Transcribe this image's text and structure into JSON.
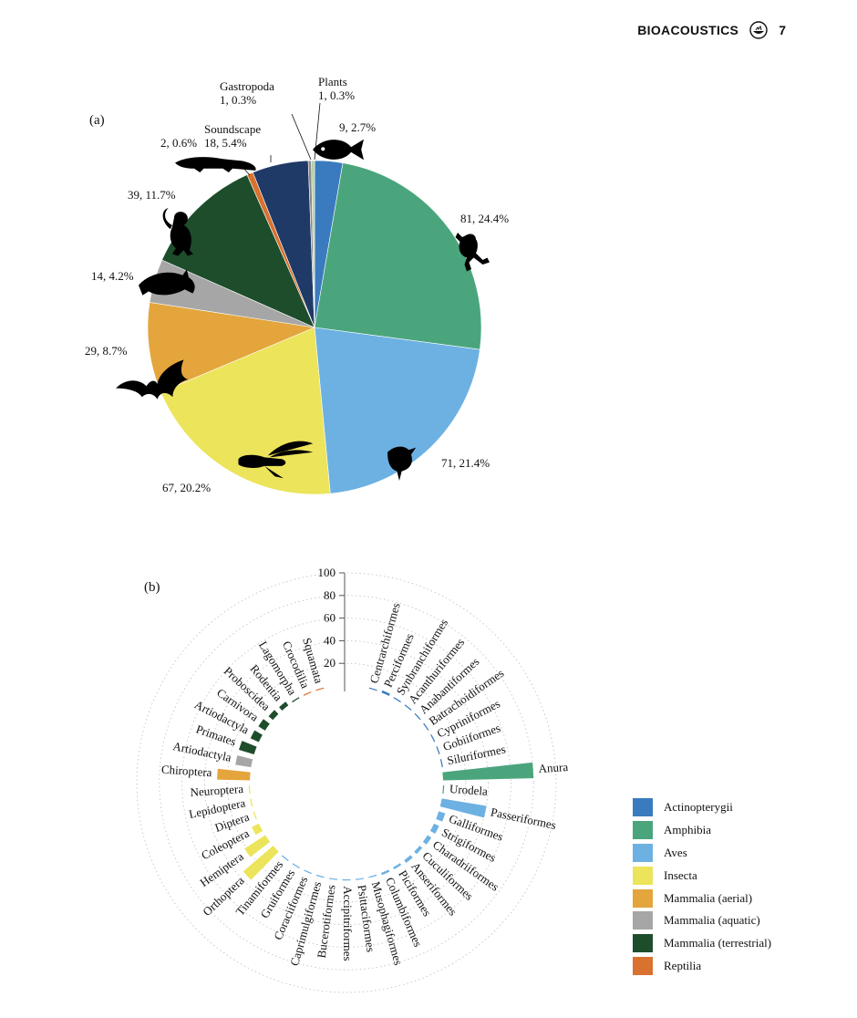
{
  "header": {
    "journal": "BIOACOUSTICS",
    "page": "7"
  },
  "panels": {
    "a": "(a)",
    "b": "(b)"
  },
  "colors": {
    "Actinopterygii": "#3a7bbf",
    "Amphibia": "#4aa57d",
    "Aves": "#6db1e3",
    "Insecta": "#ece45a",
    "Mammalia (aerial)": "#e3a53c",
    "Mammalia (aquatic)": "#a6a6a6",
    "Mammalia (terrestrial)": "#1e4d2b",
    "Reptilia": "#d9712f",
    "Soundscape": "#1f3a66",
    "Gastropoda": "#8a8a8a",
    "Plants": "#b8cfa2"
  },
  "chart_data": [
    {
      "type": "pie",
      "slices": [
        {
          "category": "Actinopterygii",
          "value": 9,
          "label": "9, 2.7%",
          "icon": "fish-icon"
        },
        {
          "category": "Amphibia",
          "value": 81,
          "label": "81, 24.4%",
          "icon": "frog-icon"
        },
        {
          "category": "Aves",
          "value": 71,
          "label": "71, 21.4%",
          "icon": "bird-icon"
        },
        {
          "category": "Insecta",
          "value": 67,
          "label": "67, 20.2%",
          "icon": "cricket-icon"
        },
        {
          "category": "Mammalia (aerial)",
          "value": 29,
          "label": "29, 8.7%",
          "icon": "bat-icon"
        },
        {
          "category": "Mammalia (aquatic)",
          "value": 14,
          "label": "14, 4.2%",
          "icon": "dolphin-icon"
        },
        {
          "category": "Mammalia (terrestrial)",
          "value": 39,
          "label": "39, 11.7%",
          "icon": "monkey-icon"
        },
        {
          "category": "Reptilia",
          "value": 2,
          "label": "2, 0.6%",
          "icon": "crocodile-icon"
        },
        {
          "category": "Soundscape",
          "value": 18,
          "label": "Soundscape\n18, 5.4%"
        },
        {
          "category": "Gastropoda",
          "value": 1,
          "label": "Gastropoda\n1, 0.3%"
        },
        {
          "category": "Plants",
          "value": 1,
          "label": "Plants\n1, 0.3%"
        }
      ]
    },
    {
      "type": "bar",
      "layout": "circular",
      "radial_axis": {
        "ticks": [
          "20",
          "40",
          "60",
          "80",
          "100"
        ],
        "range": [
          0,
          100
        ],
        "grid": true
      },
      "bars": [
        {
          "label": "Centrarchiformes",
          "group": "Actinopterygii",
          "value": 1
        },
        {
          "label": "Perciformes",
          "group": "Actinopterygii",
          "value": 2
        },
        {
          "label": "Synbranchiformes",
          "group": "Actinopterygii",
          "value": 1
        },
        {
          "label": "Acanthuriformes",
          "group": "Actinopterygii",
          "value": 1
        },
        {
          "label": "Anabantiformes",
          "group": "Actinopterygii",
          "value": 1
        },
        {
          "label": "Batrachoidiformes",
          "group": "Actinopterygii",
          "value": 1
        },
        {
          "label": "Cypriniformes",
          "group": "Actinopterygii",
          "value": 1
        },
        {
          "label": "Gobiiformes",
          "group": "Actinopterygii",
          "value": 1
        },
        {
          "label": "Siluriformes",
          "group": "Actinopterygii",
          "value": 1
        },
        {
          "label": "Anura",
          "group": "Amphibia",
          "value": 80
        },
        {
          "label": "Urodela",
          "group": "Amphibia",
          "value": 1
        },
        {
          "label": "Passeriformes",
          "group": "Aves",
          "value": 40
        },
        {
          "label": "Galliformes",
          "group": "Aves",
          "value": 6
        },
        {
          "label": "Strigiformes",
          "group": "Aves",
          "value": 5
        },
        {
          "label": "Charadriiformes",
          "group": "Aves",
          "value": 4
        },
        {
          "label": "Cuculiformes",
          "group": "Aves",
          "value": 3
        },
        {
          "label": "Anseriformes",
          "group": "Aves",
          "value": 3
        },
        {
          "label": "Piciformes",
          "group": "Aves",
          "value": 2
        },
        {
          "label": "Columbiformes",
          "group": "Aves",
          "value": 2
        },
        {
          "label": "Musophagiformes",
          "group": "Aves",
          "value": 1
        },
        {
          "label": "Psittaciformes",
          "group": "Aves",
          "value": 1
        },
        {
          "label": "Accipitriformes",
          "group": "Aves",
          "value": 1
        },
        {
          "label": "Bucerotiformes",
          "group": "Aves",
          "value": 1
        },
        {
          "label": "Caprimulgiformes",
          "group": "Aves",
          "value": 1
        },
        {
          "label": "Coraciiformes",
          "group": "Aves",
          "value": 1
        },
        {
          "label": "Gruiformes",
          "group": "Aves",
          "value": 1
        },
        {
          "label": "Tinamiformes",
          "group": "Aves",
          "value": 1
        },
        {
          "label": "Orthoptera",
          "group": "Insecta",
          "value": 35
        },
        {
          "label": "Hemiptera",
          "group": "Insecta",
          "value": 22
        },
        {
          "label": "Coleoptera",
          "group": "Insecta",
          "value": 7
        },
        {
          "label": "Diptera",
          "group": "Insecta",
          "value": 1
        },
        {
          "label": "Lepidoptera",
          "group": "Insecta",
          "value": 1
        },
        {
          "label": "Neuroptera",
          "group": "Insecta",
          "value": 1
        },
        {
          "label": "Chiroptera",
          "group": "Mammalia (aerial)",
          "value": 29
        },
        {
          "label": "Artiodactyla",
          "group": "Mammalia (aquatic)",
          "value": 14
        },
        {
          "label": "Primates",
          "group": "Mammalia (terrestrial)",
          "value": 14
        },
        {
          "label": "Artiodactyla",
          "group": "Mammalia (terrestrial)",
          "value": 8
        },
        {
          "label": "Carnivora",
          "group": "Mammalia (terrestrial)",
          "value": 7
        },
        {
          "label": "Proboscidea",
          "group": "Mammalia (terrestrial)",
          "value": 5
        },
        {
          "label": "Rodentia",
          "group": "Mammalia (terrestrial)",
          "value": 4
        },
        {
          "label": "Lagomorpha",
          "group": "Mammalia (terrestrial)",
          "value": 1
        },
        {
          "label": "Crocodilia",
          "group": "Reptilia",
          "value": 1
        },
        {
          "label": "Squamata",
          "group": "Reptilia",
          "value": 1
        }
      ],
      "legend": [
        "Actinopterygii",
        "Amphibia",
        "Aves",
        "Insecta",
        "Mammalia (aerial)",
        "Mammalia (aquatic)",
        "Mammalia (terrestrial)",
        "Reptilia"
      ],
      "legend_position": "right"
    }
  ]
}
